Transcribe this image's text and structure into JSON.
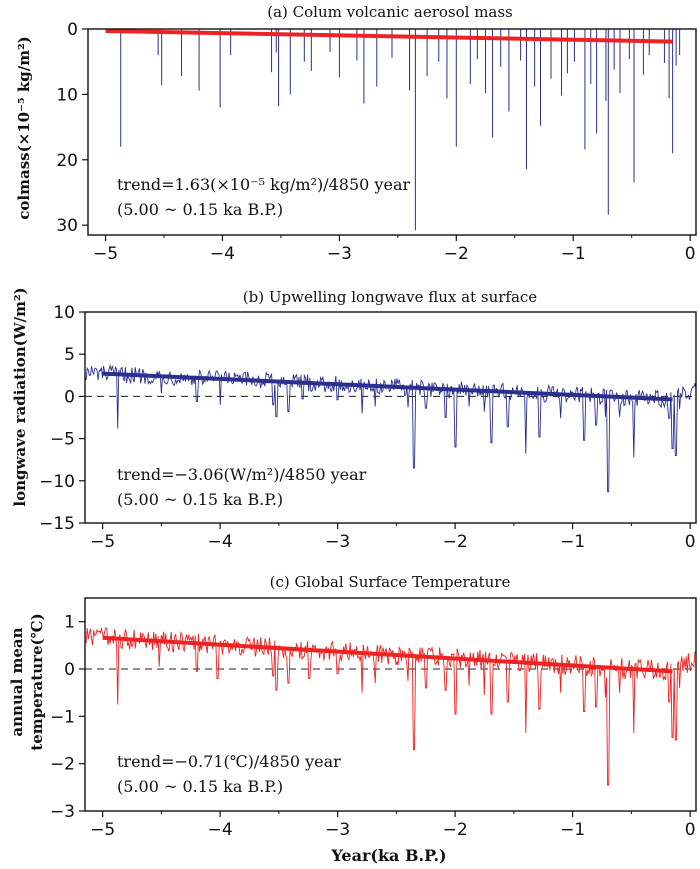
{
  "colors": {
    "blue": "#2b2f8f",
    "red": "#ee2222",
    "axis": "#111111"
  },
  "xlabel": "Year(ka B.P.)",
  "chart_data": [
    {
      "id": "a",
      "type": "bar",
      "title": "(a) Colum volcanic aerosol mass",
      "ylabel": "colmass(×10⁻⁵ kg/m²)",
      "xlim": [
        -5.15,
        0.05
      ],
      "ylim": [
        0,
        31.5
      ],
      "y_inverted": true,
      "xticks": [
        -5,
        -4,
        -3,
        -2,
        -1,
        0
      ],
      "xtick_labels": [
        "−5",
        "−4",
        "−3",
        "−2",
        "−1",
        "0"
      ],
      "yticks": [
        0,
        10,
        20,
        30
      ],
      "ytick_labels": [
        "0",
        "10",
        "20",
        "30"
      ],
      "zero_line": false,
      "series_color": "blue",
      "trend_color": "red",
      "trend": {
        "x": [
          -5.0,
          -0.15
        ],
        "y": [
          0.3,
          1.93
        ]
      },
      "trend_text": "trend=1.63(×10⁻⁵ kg/m²)/4850 year",
      "period_text": "(5.00 ~ 0.15 ka B.P.)",
      "spikes": [
        [
          -4.87,
          18
        ],
        [
          -4.55,
          4
        ],
        [
          -4.52,
          8.6
        ],
        [
          -4.35,
          7.2
        ],
        [
          -4.2,
          9.4
        ],
        [
          -4.02,
          12
        ],
        [
          -3.93,
          4
        ],
        [
          -3.58,
          6.6
        ],
        [
          -3.54,
          3.6
        ],
        [
          -3.52,
          11.8
        ],
        [
          -3.42,
          10
        ],
        [
          -3.3,
          5
        ],
        [
          -3.24,
          6.4
        ],
        [
          -3.08,
          3.5
        ],
        [
          -3.0,
          7.4
        ],
        [
          -2.85,
          4.8
        ],
        [
          -2.79,
          11.4
        ],
        [
          -2.68,
          8.8
        ],
        [
          -2.55,
          4.4
        ],
        [
          -2.4,
          9.4
        ],
        [
          -2.35,
          30.8
        ],
        [
          -2.25,
          7.2
        ],
        [
          -2.15,
          5
        ],
        [
          -2.08,
          10.6
        ],
        [
          -2.0,
          18
        ],
        [
          -1.88,
          8.4
        ],
        [
          -1.82,
          4.6
        ],
        [
          -1.75,
          9.8
        ],
        [
          -1.69,
          16.6
        ],
        [
          -1.62,
          5.8
        ],
        [
          -1.55,
          12.6
        ],
        [
          -1.45,
          4.8
        ],
        [
          -1.4,
          21.4
        ],
        [
          -1.33,
          8.8
        ],
        [
          -1.28,
          14.8
        ],
        [
          -1.19,
          7.6
        ],
        [
          -1.1,
          10.2
        ],
        [
          -1.05,
          6.8
        ],
        [
          -0.99,
          5
        ],
        [
          -0.9,
          18.4
        ],
        [
          -0.85,
          8.4
        ],
        [
          -0.8,
          16
        ],
        [
          -0.72,
          11
        ],
        [
          -0.7,
          28.4
        ],
        [
          -0.65,
          6.2
        ],
        [
          -0.6,
          9.8
        ],
        [
          -0.52,
          4.6
        ],
        [
          -0.48,
          23.5
        ],
        [
          -0.4,
          7
        ],
        [
          -0.35,
          4
        ],
        [
          -0.22,
          5.2
        ],
        [
          -0.18,
          10.6
        ],
        [
          -0.15,
          19
        ],
        [
          -0.12,
          5.6
        ],
        [
          -0.09,
          4
        ]
      ]
    },
    {
      "id": "b",
      "type": "line",
      "title": "(b) Upwelling longwave flux at surface",
      "ylabel": "longwave radiation(W/m²)",
      "xlim": [
        -5.15,
        0.05
      ],
      "ylim": [
        -15,
        10
      ],
      "y_inverted": false,
      "xticks": [
        -5,
        -4,
        -3,
        -2,
        -1,
        0
      ],
      "xtick_labels": [
        "−5",
        "−4",
        "−3",
        "−2",
        "−1",
        "0"
      ],
      "yticks": [
        -15,
        -10,
        -5,
        0,
        5,
        10
      ],
      "ytick_labels": [
        "−15",
        "−10",
        "−5",
        "0",
        "5",
        "10"
      ],
      "zero_line": true,
      "series_color": "blue",
      "trend_color": "blue",
      "trend": {
        "x": [
          -5.0,
          -0.15
        ],
        "y": [
          2.7,
          -0.36
        ]
      },
      "trend_text": "trend=−3.06(W/m²)/4850 year",
      "period_text": "(5.00 ~ 0.15 ka B.P.)",
      "baseline": {
        "x": [
          -5.15,
          -5.0,
          -0.15,
          0.05
        ],
        "y": [
          2.8,
          2.7,
          -0.36,
          0.9
        ]
      },
      "noise_amp": 1.0,
      "dips": [
        [
          -4.87,
          -3.8
        ],
        [
          -4.5,
          0.4
        ],
        [
          -4.2,
          -0.6
        ],
        [
          -4.0,
          -1.0
        ],
        [
          -3.55,
          -1.0
        ],
        [
          -3.52,
          -2.4
        ],
        [
          -3.42,
          -1.8
        ],
        [
          -3.3,
          -0.3
        ],
        [
          -3.0,
          -0.4
        ],
        [
          -2.79,
          -2.0
        ],
        [
          -2.68,
          -1.2
        ],
        [
          -2.4,
          -1.3
        ],
        [
          -2.35,
          -8.5
        ],
        [
          -2.25,
          -1.4
        ],
        [
          -2.08,
          -2.5
        ],
        [
          -2.0,
          -6.0
        ],
        [
          -1.88,
          -1.2
        ],
        [
          -1.75,
          -1.8
        ],
        [
          -1.69,
          -5.5
        ],
        [
          -1.55,
          -3.6
        ],
        [
          -1.4,
          -6.8
        ],
        [
          -1.28,
          -4.8
        ],
        [
          -1.1,
          -2.6
        ],
        [
          -0.9,
          -5.2
        ],
        [
          -0.8,
          -3.4
        ],
        [
          -0.72,
          -2.4
        ],
        [
          -0.7,
          -11.3
        ],
        [
          -0.6,
          -2.4
        ],
        [
          -0.48,
          -7.2
        ],
        [
          -0.18,
          -2.6
        ],
        [
          -0.15,
          -6.2
        ],
        [
          -0.12,
          -7.0
        ],
        [
          -0.09,
          -1.5
        ]
      ]
    },
    {
      "id": "c",
      "type": "line",
      "title": "(c) Global Surface Temperature",
      "ylabel": "annual mean temperature(℃)",
      "ylabel_lines": [
        "annual mean",
        "temperature(℃)"
      ],
      "xlim": [
        -5.15,
        0.05
      ],
      "ylim": [
        -3,
        1.5
      ],
      "y_inverted": false,
      "xticks": [
        -5,
        -4,
        -3,
        -2,
        -1,
        0
      ],
      "xtick_labels": [
        "−5",
        "−4",
        "−3",
        "−2",
        "−1",
        "0"
      ],
      "yticks": [
        -3,
        -2,
        -1,
        0,
        1
      ],
      "ytick_labels": [
        "−3",
        "−2",
        "−1",
        "0",
        "1"
      ],
      "zero_line": true,
      "series_color": "red",
      "trend_color": "red",
      "trend": {
        "x": [
          -5.0,
          -0.15
        ],
        "y": [
          0.66,
          -0.05
        ]
      },
      "trend_text": "trend=−0.71(℃)/4850 year",
      "period_text": "(5.00 ~ 0.15 ka B.P.)",
      "baseline": {
        "x": [
          -5.15,
          -5.0,
          -0.15,
          0.05
        ],
        "y": [
          0.68,
          0.66,
          -0.05,
          0.2
        ]
      },
      "noise_amp": 0.22,
      "dips": [
        [
          -4.87,
          -0.75
        ],
        [
          -4.52,
          0.05
        ],
        [
          -4.2,
          -0.05
        ],
        [
          -4.02,
          -0.2
        ],
        [
          -3.55,
          -0.15
        ],
        [
          -3.52,
          -0.45
        ],
        [
          -3.42,
          -0.3
        ],
        [
          -3.24,
          -0.2
        ],
        [
          -3.0,
          -0.1
        ],
        [
          -2.79,
          -0.5
        ],
        [
          -2.68,
          -0.3
        ],
        [
          -2.4,
          -0.25
        ],
        [
          -2.35,
          -1.7
        ],
        [
          -2.25,
          -0.4
        ],
        [
          -2.08,
          -0.45
        ],
        [
          -2.0,
          -0.95
        ],
        [
          -1.88,
          -0.35
        ],
        [
          -1.75,
          -0.55
        ],
        [
          -1.69,
          -0.95
        ],
        [
          -1.55,
          -0.7
        ],
        [
          -1.4,
          -1.35
        ],
        [
          -1.28,
          -0.85
        ],
        [
          -1.1,
          -0.5
        ],
        [
          -0.9,
          -0.9
        ],
        [
          -0.8,
          -0.8
        ],
        [
          -0.72,
          -0.6
        ],
        [
          -0.7,
          -2.45
        ],
        [
          -0.6,
          -0.5
        ],
        [
          -0.48,
          -1.35
        ],
        [
          -0.18,
          -0.7
        ],
        [
          -0.15,
          -1.45
        ],
        [
          -0.12,
          -1.5
        ],
        [
          -0.09,
          -0.4
        ]
      ]
    }
  ]
}
